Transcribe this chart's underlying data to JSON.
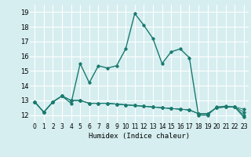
{
  "xlabel": "Humidex (Indice chaleur)",
  "bg_color": "#d6eef0",
  "grid_color": "#ffffff",
  "line_color": "#1a7a6e",
  "xlim": [
    -0.5,
    23.5
  ],
  "ylim": [
    11.5,
    19.5
  ],
  "yticks": [
    12,
    13,
    14,
    15,
    16,
    17,
    18,
    19
  ],
  "xticks": [
    0,
    1,
    2,
    3,
    4,
    5,
    6,
    7,
    8,
    9,
    10,
    11,
    12,
    13,
    14,
    15,
    16,
    17,
    18,
    19,
    20,
    21,
    22,
    23
  ],
  "series": [
    [
      12.9,
      12.2,
      12.9,
      13.3,
      12.8,
      15.5,
      14.2,
      15.35,
      15.2,
      15.35,
      16.5,
      18.9,
      18.1,
      17.2,
      15.5,
      16.3,
      16.5,
      15.9,
      12.0,
      12.0,
      12.55,
      12.6,
      12.55,
      11.85
    ],
    [
      12.9,
      12.2,
      12.9,
      13.3,
      13.0,
      13.0,
      12.8,
      12.8,
      12.8,
      12.75,
      12.7,
      12.65,
      12.6,
      12.55,
      12.5,
      12.45,
      12.4,
      12.35,
      12.1,
      12.1,
      12.5,
      12.55,
      12.55,
      12.4
    ],
    [
      12.9,
      12.2,
      12.9,
      13.3,
      13.0,
      13.0,
      12.8,
      12.8,
      12.8,
      12.75,
      12.7,
      12.65,
      12.6,
      12.55,
      12.5,
      12.45,
      12.4,
      12.35,
      12.1,
      12.1,
      12.5,
      12.55,
      12.55,
      12.0
    ],
    [
      12.9,
      12.2,
      12.9,
      13.3,
      13.0,
      13.0,
      12.8,
      12.8,
      12.8,
      12.75,
      12.7,
      12.65,
      12.6,
      12.55,
      12.5,
      12.45,
      12.4,
      12.35,
      12.1,
      12.1,
      12.5,
      12.55,
      12.55,
      12.2
    ]
  ]
}
